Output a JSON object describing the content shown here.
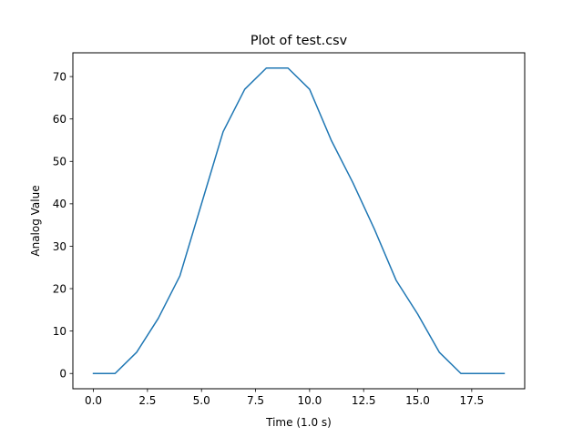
{
  "chart_data": {
    "type": "line",
    "title": "Plot of test.csv",
    "xlabel": "Time (1.0 s)",
    "ylabel": "Analog Value",
    "xlim": [
      -0.95,
      19.95
    ],
    "ylim": [
      -3.6,
      75.6
    ],
    "xticks": [
      0.0,
      2.5,
      5.0,
      7.5,
      10.0,
      12.5,
      15.0,
      17.5
    ],
    "xtick_labels": [
      "0.0",
      "2.5",
      "5.0",
      "7.5",
      "10.0",
      "12.5",
      "15.0",
      "17.5"
    ],
    "yticks": [
      0,
      10,
      20,
      30,
      40,
      50,
      60,
      70
    ],
    "ytick_labels": [
      "0",
      "10",
      "20",
      "30",
      "40",
      "50",
      "60",
      "70"
    ],
    "grid": false,
    "series": [
      {
        "color": "#1f77b4",
        "x": [
          0,
          1,
          2,
          3,
          4,
          5,
          6,
          7,
          8,
          9,
          10,
          11,
          12,
          13,
          14,
          15,
          16,
          17,
          18,
          19
        ],
        "y": [
          0,
          0,
          5,
          13,
          23,
          40,
          57,
          67,
          72,
          72,
          67,
          55,
          45,
          34,
          22,
          14,
          5,
          0,
          0,
          0
        ]
      }
    ]
  }
}
